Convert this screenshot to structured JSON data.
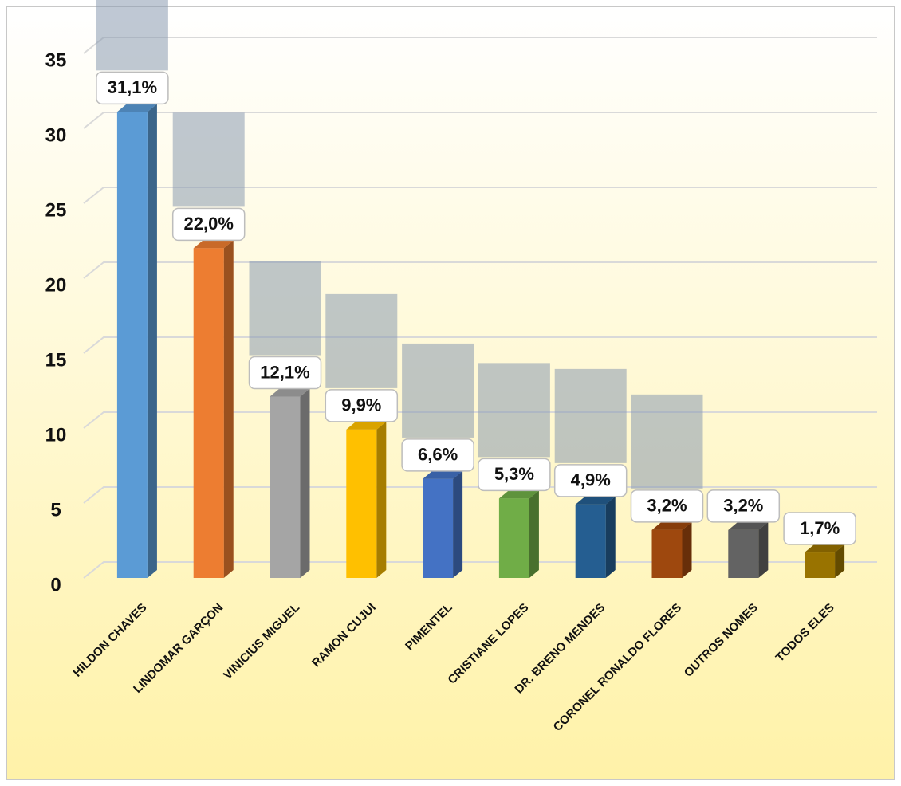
{
  "chart_data": {
    "type": "bar",
    "categories": [
      "HILDON CHAVES",
      "LINDOMAR GARÇON",
      "VINICIUS MIGUEL",
      "RAMON CUJUI",
      "PIMENTEL",
      "CRISTIANE LOPES",
      "DR. BRENO MENDES",
      "CORONEL RONALDO FLORES",
      "OUTROS NOMES",
      "TODOS ELES"
    ],
    "values": [
      31.1,
      22.0,
      12.1,
      9.9,
      6.6,
      5.3,
      4.9,
      3.2,
      3.2,
      1.7
    ],
    "value_labels": [
      "31,1%",
      "22,0%",
      "12,1%",
      "9,9%",
      "6,6%",
      "5,3%",
      "4,9%",
      "3,2%",
      "3,2%",
      "1,7%"
    ],
    "colors": [
      "#5b9bd5",
      "#ed7d31",
      "#a5a5a5",
      "#ffc000",
      "#4472c4",
      "#70ad47",
      "#255e91",
      "#9e480e",
      "#636363",
      "#997300"
    ],
    "ylim": [
      0,
      35
    ],
    "yticks": [
      0,
      5,
      10,
      15,
      20,
      25,
      30,
      35
    ],
    "grid": true
  }
}
